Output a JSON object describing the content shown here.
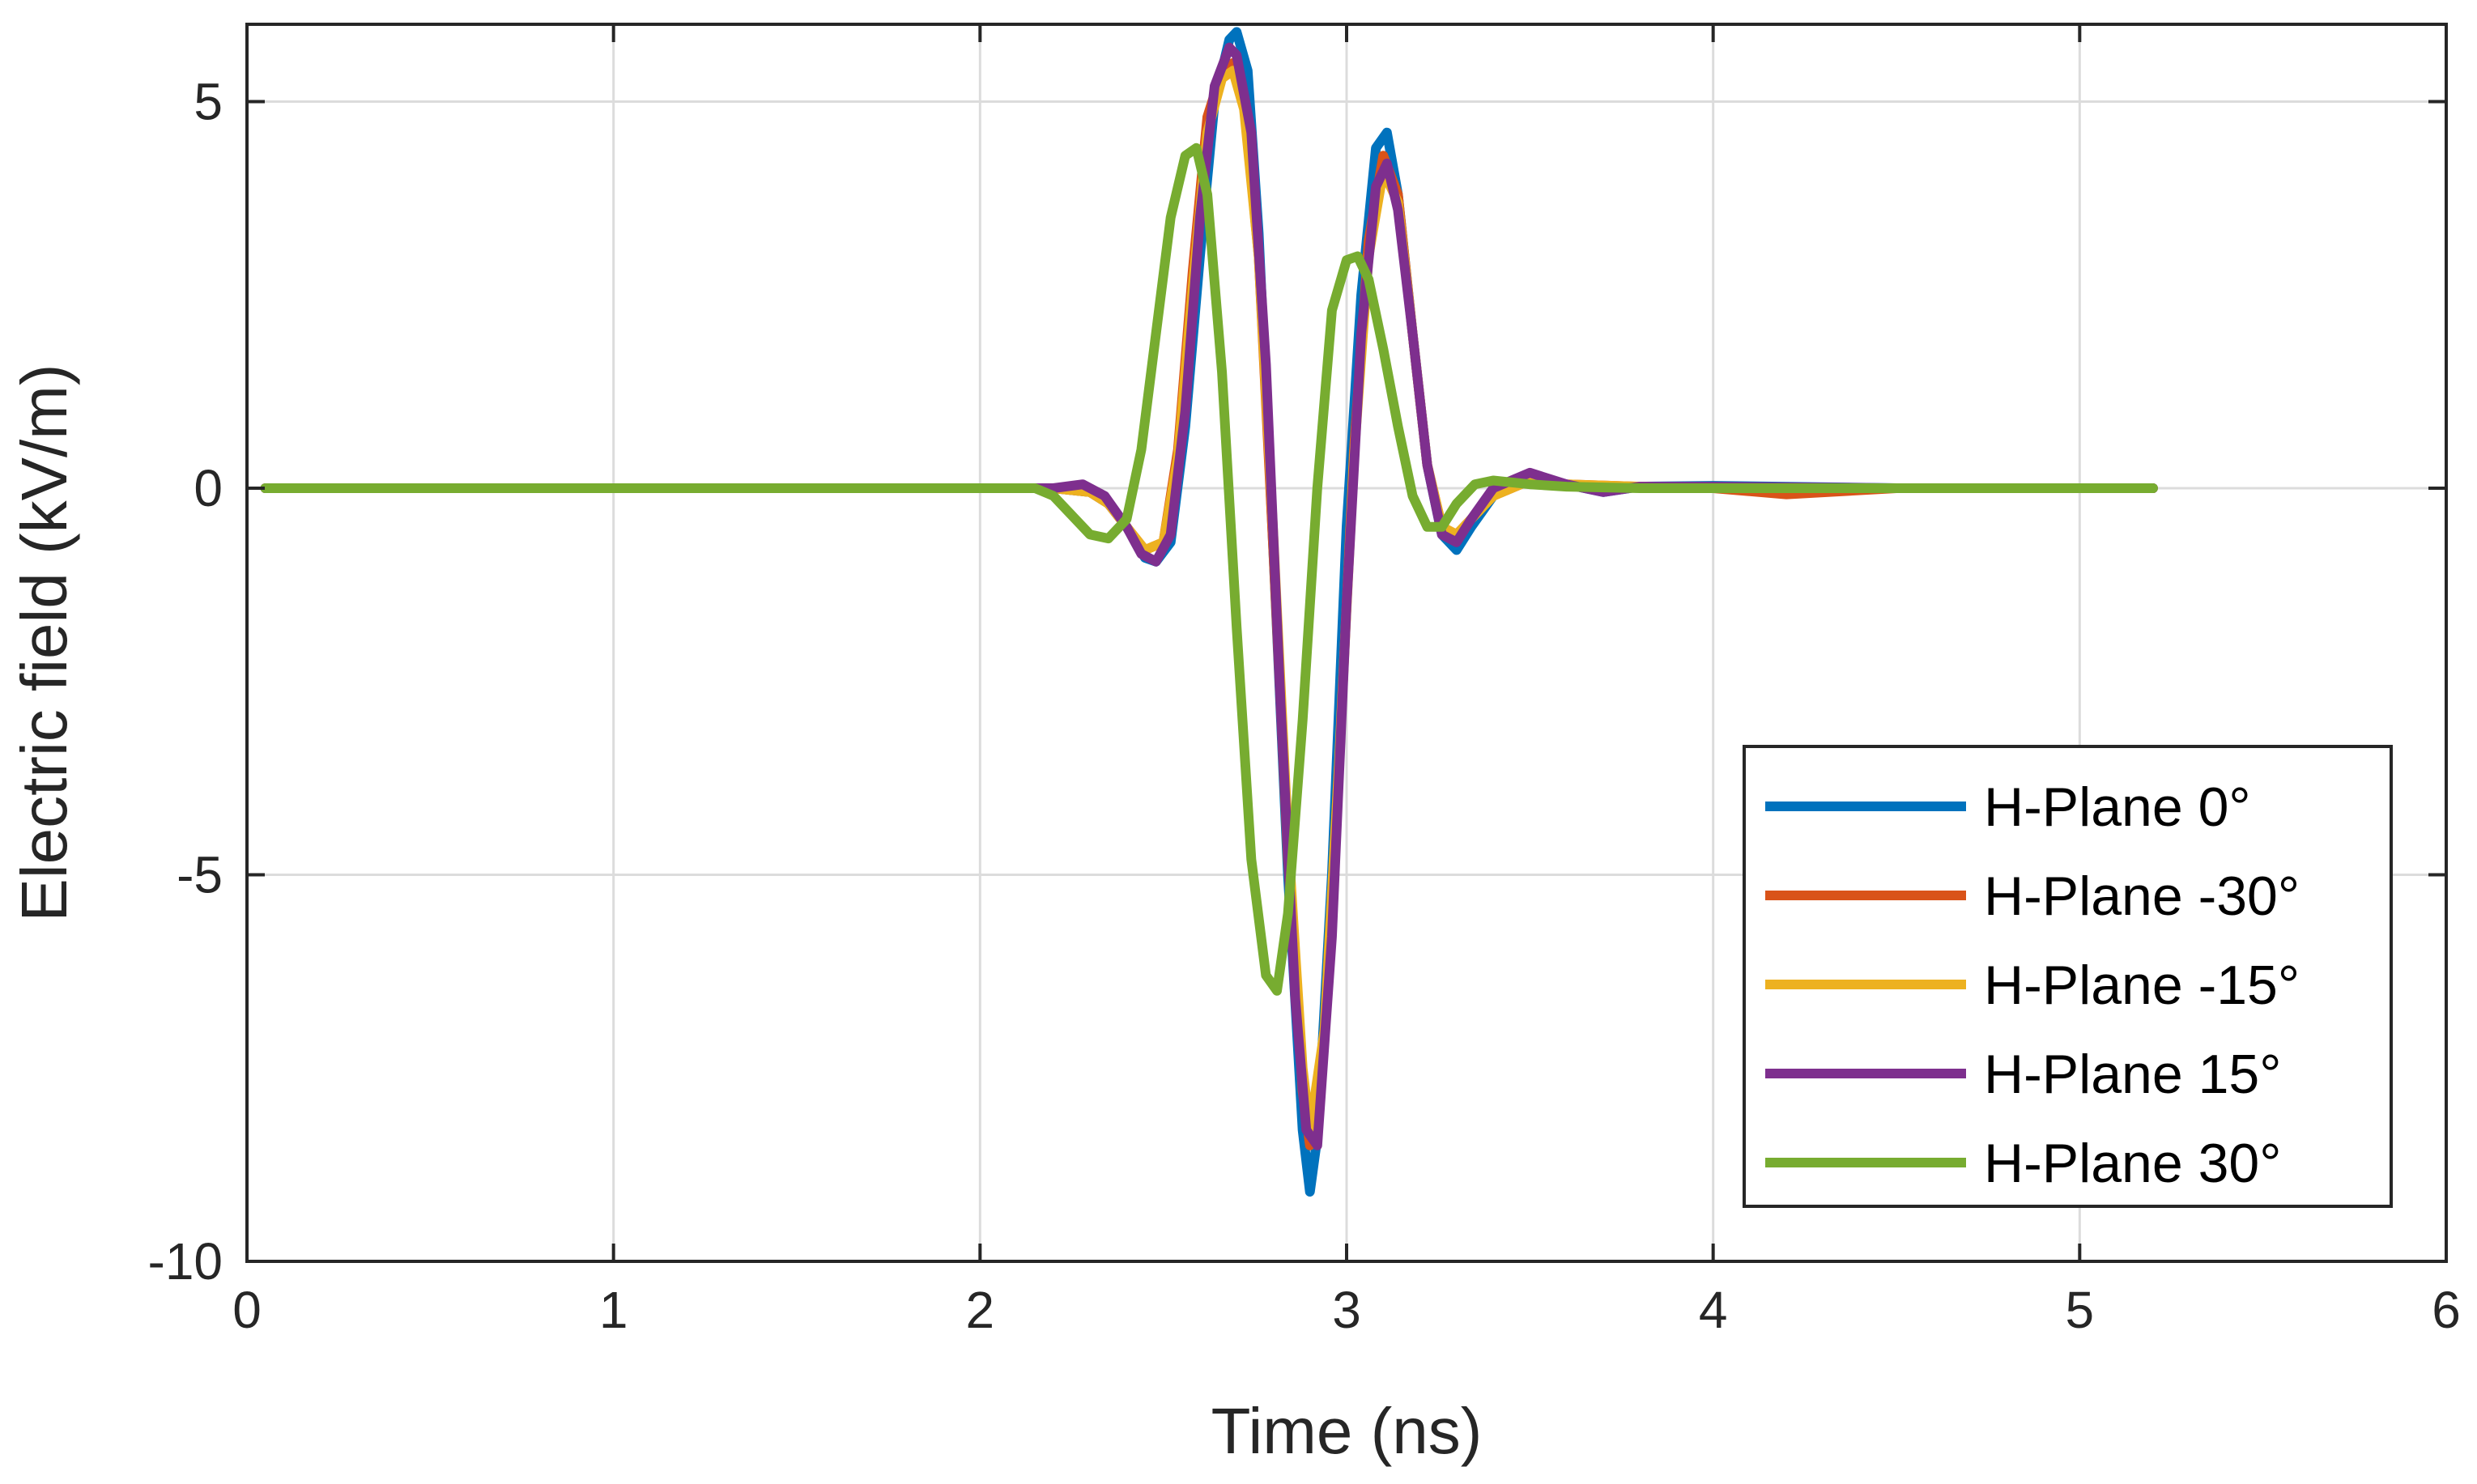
{
  "chart_data": {
    "type": "line",
    "xlabel": "Time (ns)",
    "ylabel": "Electric field (kV/m)",
    "xlim": [
      0,
      6
    ],
    "ylim": [
      -10,
      6
    ],
    "xticks": [
      0,
      1,
      2,
      3,
      4,
      5,
      6
    ],
    "yticks": [
      -10,
      -5,
      0,
      5
    ],
    "grid": true,
    "legend_position": "bottom-right",
    "series": [
      {
        "name": "H-Plane 0°",
        "color": "#0072BD",
        "x": [
          0.05,
          2.0,
          2.1,
          2.2,
          2.3,
          2.35,
          2.4,
          2.45,
          2.48,
          2.52,
          2.56,
          2.6,
          2.64,
          2.68,
          2.7,
          2.73,
          2.76,
          2.8,
          2.84,
          2.88,
          2.9,
          2.92,
          2.96,
          3.0,
          3.04,
          3.08,
          3.11,
          3.14,
          3.18,
          3.22,
          3.26,
          3.3,
          3.34,
          3.4,
          3.5,
          3.6,
          3.7,
          3.8,
          4.0,
          4.5,
          5.0,
          5.2
        ],
        "y": [
          0,
          0,
          0,
          0,
          -0.05,
          -0.2,
          -0.5,
          -0.9,
          -0.95,
          -0.7,
          0.8,
          3.0,
          5.0,
          5.8,
          5.9,
          5.4,
          3.3,
          -0.8,
          -5.0,
          -8.3,
          -9.1,
          -8.4,
          -5.0,
          -0.5,
          2.5,
          4.4,
          4.6,
          3.8,
          2.0,
          0.3,
          -0.6,
          -0.8,
          -0.5,
          -0.1,
          0.15,
          0.05,
          -0.05,
          0.02,
          0.03,
          0.0,
          0.0,
          0.0
        ]
      },
      {
        "name": "H-Plane -30°",
        "color": "#D95319",
        "x": [
          0.05,
          2.0,
          2.1,
          2.2,
          2.3,
          2.35,
          2.4,
          2.45,
          2.5,
          2.54,
          2.58,
          2.62,
          2.66,
          2.69,
          2.72,
          2.76,
          2.8,
          2.84,
          2.88,
          2.9,
          2.94,
          2.98,
          3.02,
          3.06,
          3.1,
          3.14,
          3.18,
          3.22,
          3.26,
          3.3,
          3.4,
          3.5,
          3.6,
          3.8,
          4.0,
          4.2,
          4.5,
          5.0,
          5.2
        ],
        "y": [
          0,
          0,
          0,
          0,
          -0.05,
          -0.2,
          -0.5,
          -0.8,
          -0.7,
          0.5,
          2.8,
          4.8,
          5.4,
          5.5,
          5.0,
          3.0,
          -0.8,
          -4.8,
          -7.8,
          -8.5,
          -7.0,
          -3.5,
          0.5,
          3.2,
          4.3,
          3.8,
          2.0,
          0.3,
          -0.5,
          -0.6,
          -0.1,
          0.1,
          0.05,
          0.02,
          0.0,
          -0.08,
          0.0,
          0.0,
          0.0
        ]
      },
      {
        "name": "H-Plane -15°",
        "color": "#EDB120",
        "x": [
          0.05,
          2.0,
          2.1,
          2.2,
          2.3,
          2.35,
          2.4,
          2.45,
          2.5,
          2.54,
          2.58,
          2.62,
          2.66,
          2.69,
          2.72,
          2.76,
          2.8,
          2.84,
          2.88,
          2.9,
          2.94,
          2.98,
          3.02,
          3.06,
          3.1,
          3.14,
          3.18,
          3.22,
          3.26,
          3.3,
          3.4,
          3.5,
          3.6,
          3.8,
          4.0,
          4.5,
          5.0,
          5.2
        ],
        "y": [
          0,
          0,
          0,
          0,
          -0.05,
          -0.2,
          -0.5,
          -0.8,
          -0.7,
          0.4,
          2.6,
          4.6,
          5.3,
          5.4,
          4.9,
          3.0,
          -0.6,
          -4.5,
          -7.5,
          -8.3,
          -7.0,
          -3.5,
          0.4,
          3.0,
          4.1,
          3.7,
          2.0,
          0.3,
          -0.5,
          -0.6,
          -0.1,
          0.1,
          0.05,
          0.02,
          0.0,
          0.0,
          0.0,
          0.0
        ]
      },
      {
        "name": "H-Plane 15°",
        "color": "#7E2F8E",
        "x": [
          0.05,
          2.0,
          2.1,
          2.2,
          2.28,
          2.34,
          2.4,
          2.44,
          2.48,
          2.52,
          2.56,
          2.6,
          2.64,
          2.68,
          2.7,
          2.74,
          2.78,
          2.82,
          2.86,
          2.89,
          2.92,
          2.96,
          3.0,
          3.04,
          3.08,
          3.11,
          3.14,
          3.18,
          3.22,
          3.26,
          3.3,
          3.34,
          3.4,
          3.5,
          3.6,
          3.7,
          3.8,
          4.0,
          4.5,
          5.0,
          5.2
        ],
        "y": [
          0,
          0,
          0,
          0,
          0.05,
          -0.1,
          -0.5,
          -0.85,
          -0.95,
          -0.6,
          1.0,
          3.5,
          5.2,
          5.7,
          5.6,
          4.6,
          1.6,
          -2.8,
          -6.6,
          -8.3,
          -8.5,
          -5.8,
          -1.5,
          2.0,
          3.9,
          4.2,
          3.6,
          2.0,
          0.3,
          -0.6,
          -0.7,
          -0.4,
          0.0,
          0.2,
          0.05,
          -0.05,
          0.02,
          0.02,
          0.0,
          0.0,
          0.0
        ]
      },
      {
        "name": "H-Plane 30°",
        "color": "#77AC30",
        "x": [
          0.05,
          2.0,
          2.1,
          2.15,
          2.2,
          2.25,
          2.3,
          2.35,
          2.4,
          2.44,
          2.48,
          2.52,
          2.56,
          2.59,
          2.62,
          2.66,
          2.7,
          2.74,
          2.78,
          2.81,
          2.84,
          2.88,
          2.92,
          2.96,
          3.0,
          3.03,
          3.06,
          3.1,
          3.14,
          3.18,
          3.22,
          3.26,
          3.3,
          3.35,
          3.4,
          3.5,
          3.6,
          3.8,
          4.0,
          4.5,
          5.0,
          5.2
        ],
        "y": [
          0,
          0,
          0,
          0,
          -0.1,
          -0.35,
          -0.6,
          -0.65,
          -0.4,
          0.5,
          2.0,
          3.5,
          4.3,
          4.4,
          3.8,
          1.5,
          -1.8,
          -4.8,
          -6.3,
          -6.5,
          -5.5,
          -3.0,
          0.0,
          2.3,
          2.95,
          3.0,
          2.7,
          1.8,
          0.8,
          -0.1,
          -0.5,
          -0.5,
          -0.2,
          0.05,
          0.1,
          0.05,
          0.02,
          0.0,
          0.0,
          0.0,
          0.0,
          0.0
        ]
      }
    ]
  }
}
